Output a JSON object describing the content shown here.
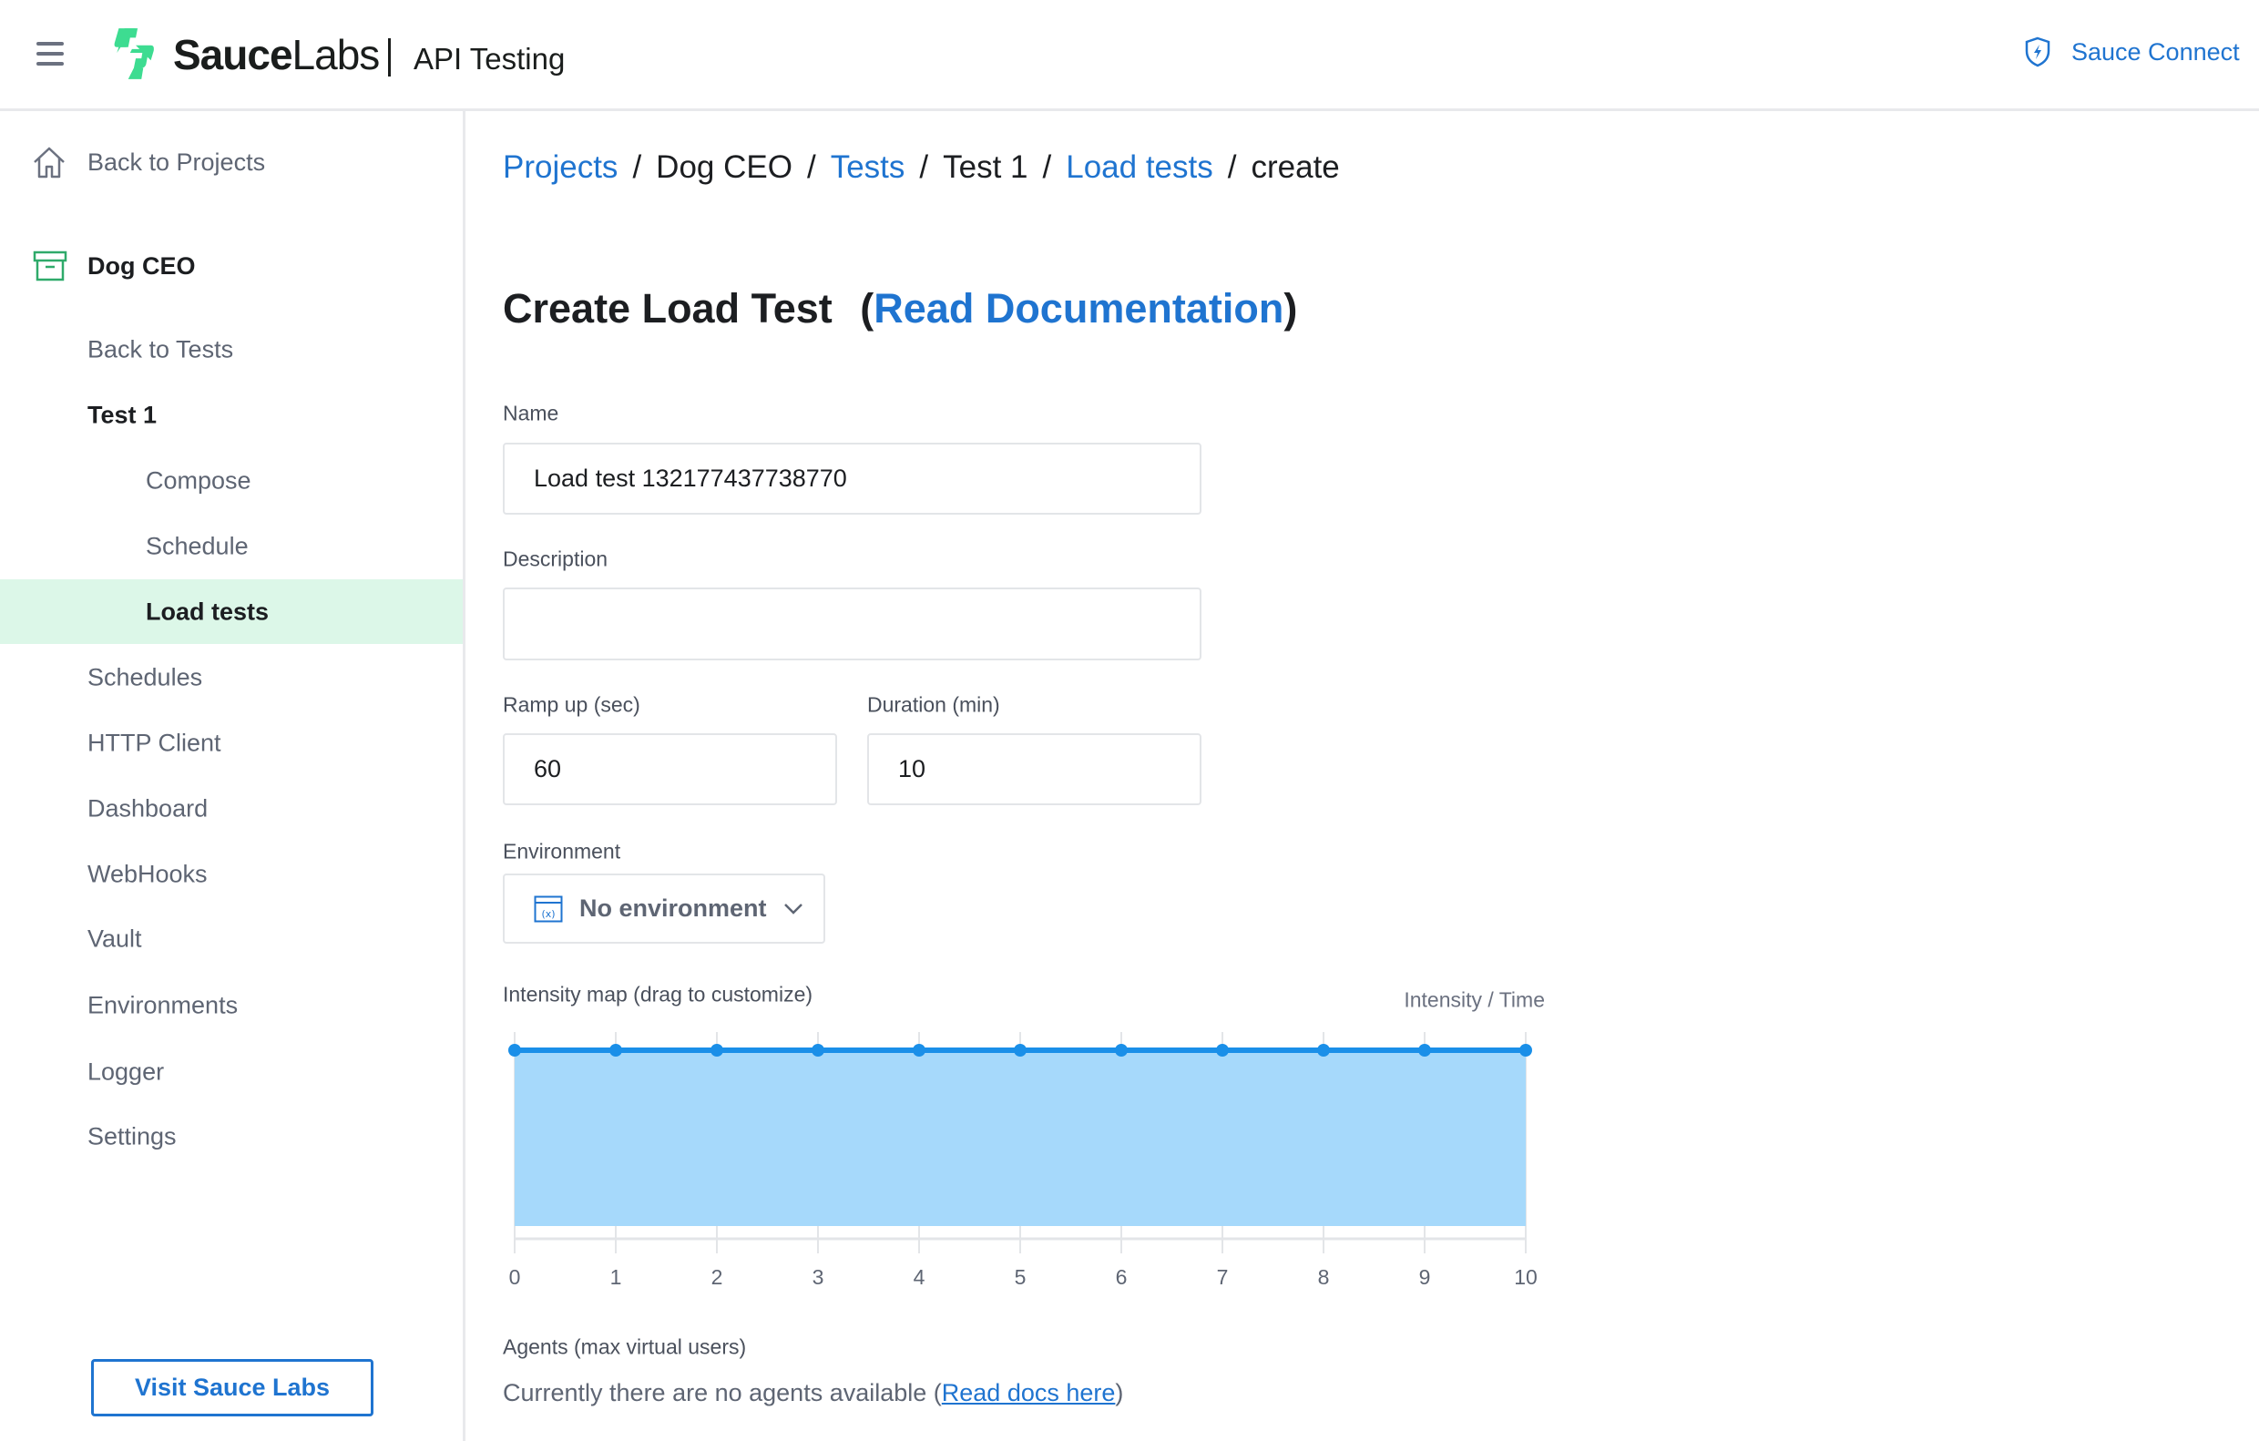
{
  "header": {
    "brand_bold": "Sauce",
    "brand_light": "Labs",
    "product": "API Testing",
    "sauce_connect": "Sauce Connect"
  },
  "sidebar": {
    "back_to_projects": "Back to Projects",
    "project": "Dog CEO",
    "items": [
      {
        "label": "Back to Tests"
      },
      {
        "label": "Test 1"
      },
      {
        "label": "Compose"
      },
      {
        "label": "Schedule"
      },
      {
        "label": "Load tests",
        "active": true
      },
      {
        "label": "Schedules"
      },
      {
        "label": "HTTP Client"
      },
      {
        "label": "Dashboard"
      },
      {
        "label": "WebHooks"
      },
      {
        "label": "Vault"
      },
      {
        "label": "Environments"
      },
      {
        "label": "Logger"
      },
      {
        "label": "Settings"
      }
    ],
    "visit_button": "Visit Sauce Labs"
  },
  "breadcrumb": [
    {
      "label": "Projects",
      "link": true
    },
    {
      "label": "Dog CEO",
      "link": false
    },
    {
      "label": "Tests",
      "link": true
    },
    {
      "label": "Test 1",
      "link": false
    },
    {
      "label": "Load tests",
      "link": true
    },
    {
      "label": "create",
      "link": false
    }
  ],
  "page": {
    "title": "Create Load Test",
    "doc_link": "Read Documentation"
  },
  "form": {
    "name_label": "Name",
    "name_value": "Load test 132177437738770",
    "description_label": "Description",
    "description_value": "",
    "rampup_label": "Ramp up (sec)",
    "rampup_value": "60",
    "duration_label": "Duration (min)",
    "duration_value": "10",
    "environment_label": "Environment",
    "environment_value": "No environment",
    "intensity_label": "Intensity map (drag to customize)",
    "intensity_legend": "Intensity / Time",
    "agents_label": "Agents (max virtual users)",
    "agents_text": "Currently there are no agents available (",
    "agents_link": "Read docs here",
    "agents_close": ")"
  },
  "colors": {
    "accent": "#1f74d0",
    "brand_green": "#3ddc91",
    "active_bg": "#dcf7e8",
    "chart_line": "#1a8fe8",
    "chart_fill": "#a6d9fb"
  },
  "chart_data": {
    "type": "area",
    "x": [
      0,
      1,
      2,
      3,
      4,
      5,
      6,
      7,
      8,
      9,
      10
    ],
    "values": [
      1,
      1,
      1,
      1,
      1,
      1,
      1,
      1,
      1,
      1,
      1
    ],
    "xticks": [
      "0",
      "1",
      "2",
      "3",
      "4",
      "5",
      "6",
      "7",
      "8",
      "9",
      "10"
    ],
    "ylim": [
      0,
      1
    ],
    "legend": "Intensity / Time",
    "grid": true
  }
}
